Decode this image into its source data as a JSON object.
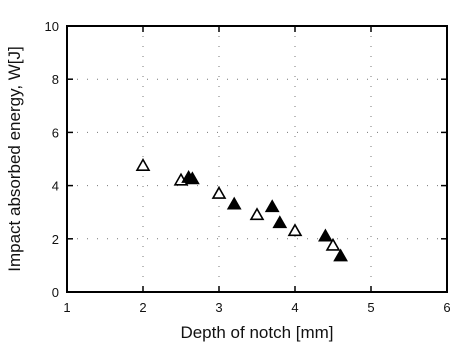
{
  "chart_data": {
    "type": "scatter",
    "xlabel": "Depth of notch  [mm]",
    "ylabel": "Impact absorbed energy,  W[J]",
    "xlim": [
      1,
      6
    ],
    "ylim": [
      0,
      10
    ],
    "xticks": [
      1,
      2,
      3,
      4,
      5,
      6
    ],
    "yticks": [
      0,
      2,
      4,
      6,
      8,
      10
    ],
    "grid": "dotted",
    "series": [
      {
        "marker": "open-triangle",
        "color": "#000000",
        "points": [
          {
            "x": 2.0,
            "y": 4.75
          },
          {
            "x": 2.5,
            "y": 4.2
          },
          {
            "x": 3.0,
            "y": 3.7
          },
          {
            "x": 3.5,
            "y": 2.9
          },
          {
            "x": 4.0,
            "y": 2.3
          },
          {
            "x": 4.5,
            "y": 1.75
          }
        ]
      },
      {
        "marker": "filled-triangle",
        "color": "#000000",
        "points": [
          {
            "x": 2.6,
            "y": 4.3
          },
          {
            "x": 2.65,
            "y": 4.25
          },
          {
            "x": 3.2,
            "y": 3.3
          },
          {
            "x": 3.7,
            "y": 3.2
          },
          {
            "x": 3.8,
            "y": 2.6
          },
          {
            "x": 4.4,
            "y": 2.1
          },
          {
            "x": 4.6,
            "y": 1.35
          }
        ]
      }
    ]
  }
}
